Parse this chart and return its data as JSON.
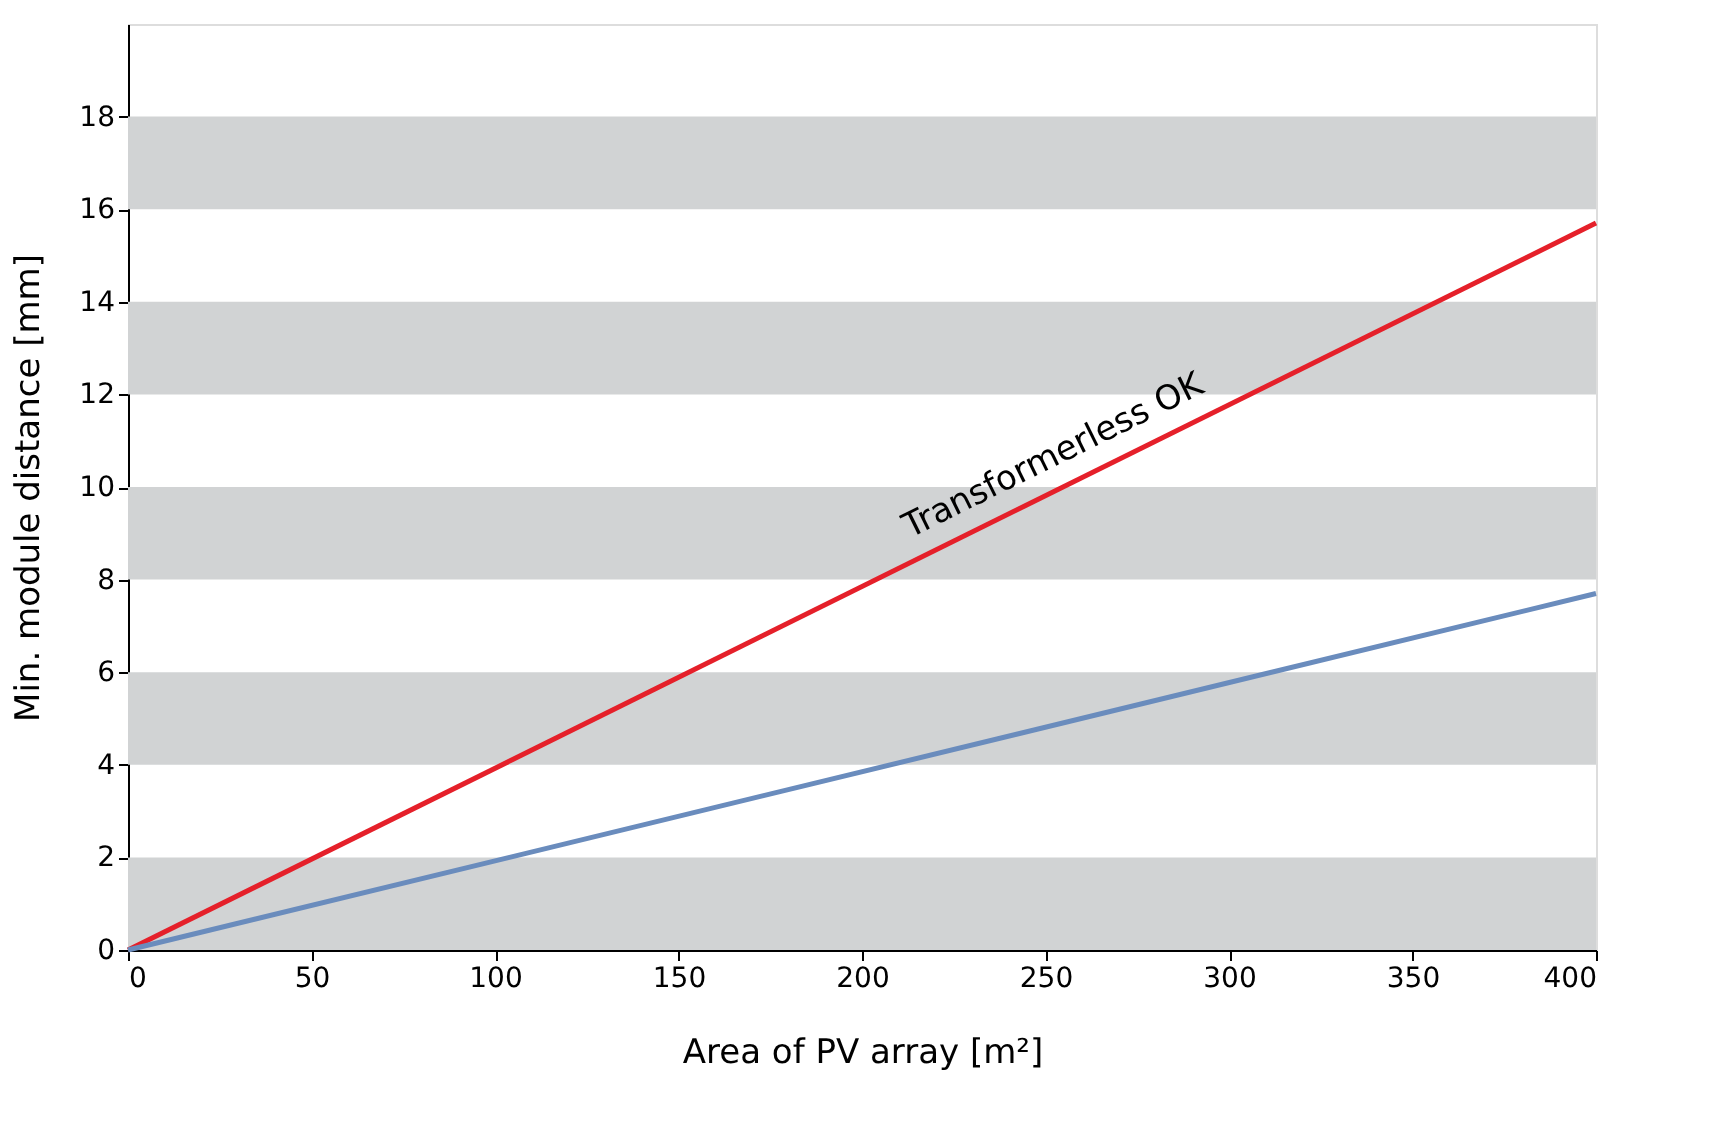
{
  "chart_data": {
    "type": "line",
    "xlabel": "Area of PV array [m²]",
    "ylabel": "Min. module distance [mm]",
    "x": [
      0,
      400
    ],
    "series": [
      {
        "name": "Transformerless OK",
        "color": "#e5202a",
        "values": [
          0,
          15.7
        ]
      },
      {
        "color": "#6a8cbd",
        "values": [
          0,
          7.7
        ]
      }
    ],
    "xlim": [
      0,
      400
    ],
    "xticks": [
      0,
      50,
      100,
      150,
      200,
      250,
      300,
      350,
      400
    ],
    "ylim": [
      0,
      20
    ],
    "yticks": [
      0,
      2,
      4,
      6,
      8,
      10,
      12,
      14,
      16,
      18
    ],
    "bands": [
      {
        "axis": "y",
        "from": 0,
        "to": 2,
        "color": "#d1d3d4"
      },
      {
        "axis": "y",
        "from": 4,
        "to": 6,
        "color": "#d1d3d4"
      },
      {
        "axis": "y",
        "from": 8,
        "to": 10,
        "color": "#d1d3d4"
      },
      {
        "axis": "y",
        "from": 12,
        "to": 14,
        "color": "#d1d3d4"
      },
      {
        "axis": "y",
        "from": 16,
        "to": 18,
        "color": "#d1d3d4"
      }
    ],
    "grid": false,
    "marker": "none",
    "line_style": "solid"
  }
}
